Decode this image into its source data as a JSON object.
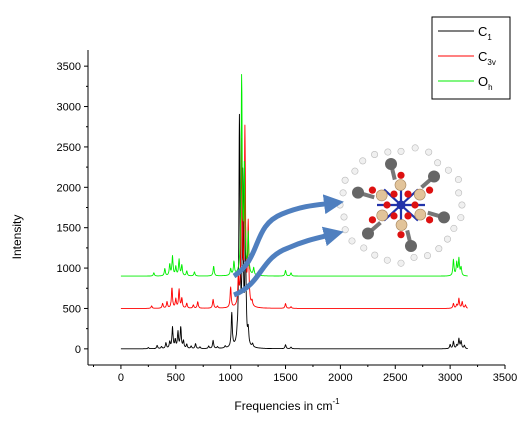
{
  "chart_data": {
    "type": "line",
    "title": "",
    "xlabel": "Frequencies in cm",
    "xlabel_superscript": "-1",
    "ylabel": "Intensity",
    "xlim": [
      -300,
      3500
    ],
    "ylim": [
      -200,
      3700
    ],
    "x_ticks": [
      0,
      500,
      1000,
      1500,
      2000,
      2500,
      3000,
      3500
    ],
    "y_ticks": [
      0,
      500,
      1000,
      1500,
      2000,
      2500,
      3000,
      3500
    ],
    "grid": false,
    "legend_position": "top-right",
    "series": [
      {
        "name": "C1",
        "legend_main": "C",
        "legend_sub": "1",
        "color": "#000000",
        "offset": 0,
        "peaks": [
          [
            250,
            15
          ],
          [
            330,
            40
          ],
          [
            370,
            25
          ],
          [
            410,
            70
          ],
          [
            445,
            80
          ],
          [
            470,
            260
          ],
          [
            495,
            100
          ],
          [
            520,
            200
          ],
          [
            545,
            260
          ],
          [
            570,
            90
          ],
          [
            600,
            50
          ],
          [
            640,
            30
          ],
          [
            680,
            60
          ],
          [
            720,
            20
          ],
          [
            800,
            30
          ],
          [
            840,
            100
          ],
          [
            880,
            20
          ],
          [
            950,
            25
          ],
          [
            1010,
            420
          ],
          [
            1060,
            50
          ],
          [
            1080,
            2800
          ],
          [
            1110,
            2050
          ],
          [
            1135,
            1400
          ],
          [
            1160,
            180
          ],
          [
            1200,
            40
          ],
          [
            1500,
            50
          ],
          [
            1550,
            20
          ],
          [
            3000,
            50
          ],
          [
            3030,
            90
          ],
          [
            3060,
            40
          ],
          [
            3080,
            120
          ],
          [
            3100,
            90
          ],
          [
            3130,
            40
          ]
        ]
      },
      {
        "name": "C3v",
        "legend_main": "C",
        "legend_sub": "3v",
        "color": "#ff0000",
        "offset": 500,
        "peaks": [
          [
            280,
            30
          ],
          [
            380,
            60
          ],
          [
            420,
            80
          ],
          [
            465,
            250
          ],
          [
            500,
            110
          ],
          [
            530,
            230
          ],
          [
            555,
            120
          ],
          [
            600,
            60
          ],
          [
            660,
            40
          ],
          [
            700,
            80
          ],
          [
            840,
            110
          ],
          [
            880,
            25
          ],
          [
            1000,
            250
          ],
          [
            1070,
            320
          ],
          [
            1100,
            2000
          ],
          [
            1130,
            2150
          ],
          [
            1160,
            1000
          ],
          [
            1195,
            60
          ],
          [
            1500,
            60
          ],
          [
            1550,
            20
          ],
          [
            3030,
            60
          ],
          [
            3060,
            40
          ],
          [
            3080,
            120
          ],
          [
            3110,
            80
          ],
          [
            3140,
            40
          ]
        ]
      },
      {
        "name": "Oh",
        "legend_main": "O",
        "legend_sub": "h",
        "color": "#00ee00",
        "offset": 900,
        "peaks": [
          [
            300,
            40
          ],
          [
            400,
            90
          ],
          [
            445,
            140
          ],
          [
            470,
            240
          ],
          [
            500,
            110
          ],
          [
            530,
            200
          ],
          [
            555,
            130
          ],
          [
            600,
            60
          ],
          [
            670,
            50
          ],
          [
            845,
            120
          ],
          [
            1000,
            80
          ],
          [
            1030,
            160
          ],
          [
            1100,
            2420
          ],
          [
            1125,
            1300
          ],
          [
            1160,
            500
          ],
          [
            1210,
            90
          ],
          [
            1500,
            70
          ],
          [
            1550,
            40
          ],
          [
            3030,
            200
          ],
          [
            3060,
            160
          ],
          [
            3080,
            210
          ],
          [
            3100,
            100
          ]
        ]
      }
    ],
    "peak_width": 6
  }
}
